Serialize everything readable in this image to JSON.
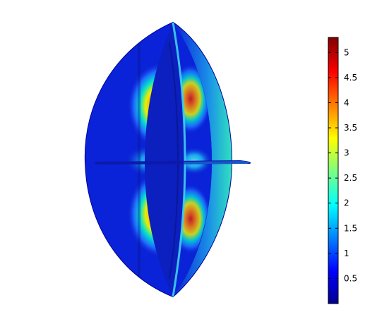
{
  "figure": {
    "colorbar": {
      "colormap": "jet",
      "range": [
        0,
        5.3
      ],
      "tick_labels": [
        "5",
        "4.5",
        "4",
        "3.5",
        "3",
        "2.5",
        "2",
        "1.5",
        "1",
        "0.5"
      ],
      "colors": [
        "#00008f",
        "#0000ff",
        "#00ffff",
        "#ffff00",
        "#ff0000",
        "#800000"
      ]
    },
    "background": "#ffffff"
  }
}
